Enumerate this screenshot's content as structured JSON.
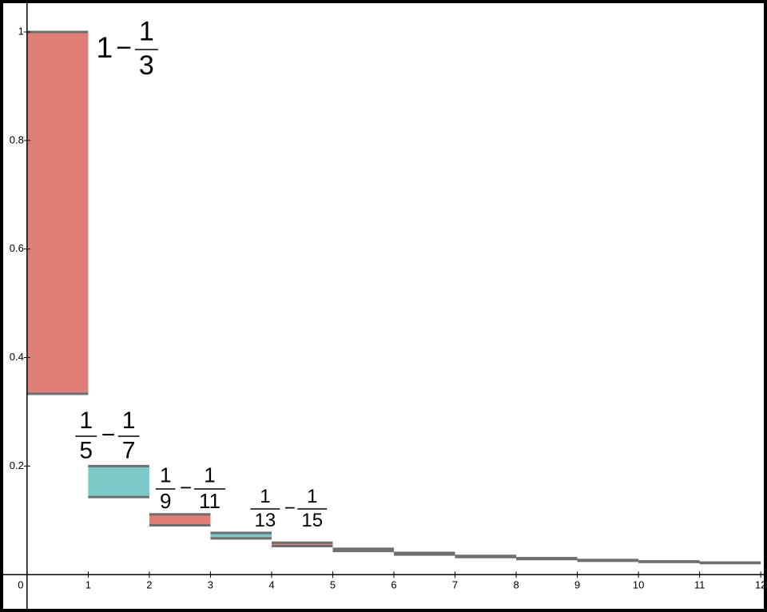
{
  "chart_data": {
    "type": "floating-bar",
    "x_start": [
      0,
      1,
      2,
      3,
      4,
      5,
      6,
      7,
      8,
      9,
      10,
      11
    ],
    "x_end": [
      1,
      2,
      3,
      4,
      5,
      6,
      7,
      8,
      9,
      10,
      11,
      12
    ],
    "high": [
      1,
      0.2,
      0.1111,
      0.0769,
      0.0588,
      0.0476,
      0.04,
      0.0345,
      0.0303,
      0.027,
      0.0244,
      0.0222
    ],
    "low": [
      0.3333,
      0.1429,
      0.0909,
      0.0667,
      0.0526,
      0.0435,
      0.037,
      0.0323,
      0.0286,
      0.0256,
      0.0233,
      0.0213
    ],
    "colors": [
      "#e07f76",
      "#7ccac8",
      "#e07f76",
      "#7ccac8",
      "#e07f76",
      "#7ccac8",
      "#e07f76",
      "#7ccac8",
      "#e07f76",
      "#7ccac8",
      "#e07f76",
      "#7ccac8"
    ],
    "edge_color": "#6e6e72",
    "xlim": [
      -0.39,
      12.05
    ],
    "ylim": [
      -0.063,
      1.053
    ],
    "xticks": [
      0,
      1,
      2,
      3,
      4,
      5,
      6,
      7,
      8,
      9,
      10,
      11,
      12
    ],
    "yticks": [
      0.2,
      0.4,
      0.6,
      0.8,
      1
    ],
    "annotations": [
      {
        "left": "1",
        "op": "−",
        "right": {
          "num": "1",
          "den": "3"
        }
      },
      {
        "left": {
          "num": "1",
          "den": "5"
        },
        "op": "−",
        "right": {
          "num": "1",
          "den": "7"
        }
      },
      {
        "left": {
          "num": "1",
          "den": "9"
        },
        "op": "−",
        "right": {
          "num": "1",
          "den": "11"
        }
      },
      {
        "left": {
          "num": "1",
          "den": "13"
        },
        "op": "−",
        "right": {
          "num": "1",
          "den": "15"
        }
      }
    ]
  }
}
